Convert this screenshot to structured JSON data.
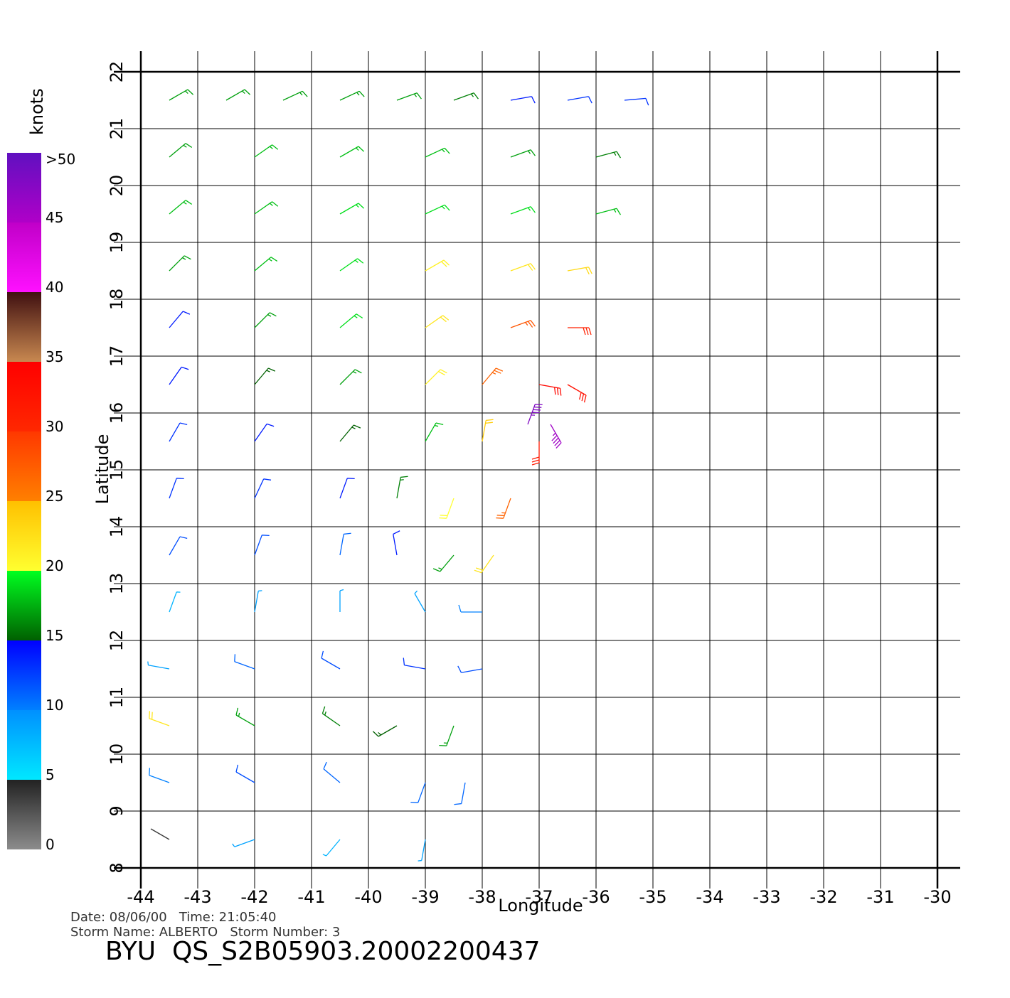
{
  "chart_data": {
    "type": "wind-barbs",
    "x_label": "Longitude",
    "y_label": "Latitude",
    "xlim": [
      -44,
      -30
    ],
    "ylim": [
      8,
      22
    ],
    "xticks": [
      -44,
      -43,
      -42,
      -41,
      -40,
      -39,
      -38,
      -37,
      -36,
      -35,
      -34,
      -33,
      -32,
      -31,
      -30
    ],
    "yticks": [
      8,
      9,
      10,
      11,
      12,
      13,
      14,
      15,
      16,
      17,
      18,
      19,
      20,
      21,
      22
    ],
    "grid": true,
    "colorbar": {
      "label": "knots",
      "ticks": [
        0,
        5,
        10,
        15,
        20,
        25,
        30,
        35,
        40,
        45,
        {
          "value": 50,
          "label": ">50"
        }
      ],
      "colors": [
        [
          "#8c8c8c",
          "#222222"
        ],
        [
          "#00e8ff",
          "#0090ff"
        ],
        [
          "#0080ff",
          "#0000ff"
        ],
        [
          "#006000",
          "#00ff20"
        ],
        [
          "#ffff30",
          "#ffc000"
        ],
        [
          "#ff8000",
          "#ff3800"
        ],
        [
          "#ff2800",
          "#ff0000"
        ],
        [
          "#c88850",
          "#401010"
        ],
        [
          "#ff10ff",
          "#c000c8"
        ],
        [
          "#b000c8",
          "#6010c0"
        ]
      ]
    },
    "barbs": {
      "lon": [
        -43.5,
        -42.5,
        -41.5,
        -40.5,
        -39.5,
        -38.5,
        -37.5,
        -36.5,
        -35.5,
        -43.5,
        -42,
        -40.5,
        -39,
        -37.5,
        -36,
        -43.5,
        -42,
        -40.5,
        -39,
        -37.5,
        -36,
        -43.5,
        -42,
        -40.5,
        -39,
        -37.5,
        -36.5,
        -43.5,
        -42,
        -40.5,
        -39,
        -37.5,
        -36.5,
        -43.5,
        -42,
        -40.5,
        -39,
        -38,
        -37,
        -36.5,
        -37.2,
        -36.8,
        -43.5,
        -42,
        -40.5,
        -39,
        -38,
        -37,
        -43.5,
        -42,
        -40.5,
        -39.5,
        -38.5,
        -37.5,
        -43.5,
        -42,
        -40.5,
        -39.5,
        -38.5,
        -37.8,
        -43.5,
        -42,
        -40.5,
        -39,
        -38,
        -43.5,
        -42,
        -40.5,
        -39,
        -38,
        -43.5,
        -42,
        -40.5,
        -39.5,
        -38.5,
        -43.5,
        -42,
        -40.5,
        -39,
        -38.3,
        -43.5,
        -42,
        -40.5,
        -39
      ],
      "lat": [
        21.5,
        21.5,
        21.5,
        21.5,
        21.5,
        21.5,
        21.5,
        21.5,
        21.5,
        20.5,
        20.5,
        20.5,
        20.5,
        20.5,
        20.5,
        19.5,
        19.5,
        19.5,
        19.5,
        19.5,
        19.5,
        18.5,
        18.5,
        18.5,
        18.5,
        18.5,
        18.5,
        17.5,
        17.5,
        17.5,
        17.5,
        17.5,
        17.5,
        16.5,
        16.5,
        16.5,
        16.5,
        16.5,
        16.5,
        16.5,
        15.8,
        15.8,
        15.5,
        15.5,
        15.5,
        15.5,
        15.5,
        15.5,
        14.5,
        14.5,
        14.5,
        14.5,
        14.5,
        14.5,
        13.5,
        13.5,
        13.5,
        13.5,
        13.5,
        13.5,
        12.5,
        12.5,
        12.5,
        12.5,
        12.5,
        11.5,
        11.5,
        11.5,
        11.5,
        11.5,
        10.5,
        10.5,
        10.5,
        10.5,
        10.5,
        9.5,
        9.5,
        9.5,
        9.5,
        9.5,
        8.5,
        8.5,
        8.5,
        8.5
      ],
      "speed": [
        17,
        17,
        17,
        17,
        17,
        16,
        14,
        13,
        13,
        17,
        18,
        18,
        18,
        17,
        16,
        18,
        18,
        19,
        19,
        19,
        18,
        17,
        18,
        19,
        21,
        22,
        23,
        14,
        17,
        19,
        22,
        28,
        31,
        14,
        15,
        17,
        21,
        27,
        34,
        33,
        48,
        46,
        13,
        14,
        15,
        18,
        24,
        32,
        13,
        13,
        14,
        16,
        20,
        27,
        12,
        12,
        11,
        14,
        17,
        22,
        8,
        9,
        9,
        9,
        10,
        9,
        11,
        12,
        13,
        12,
        22,
        17,
        16,
        15,
        17,
        10,
        12,
        11,
        11,
        11,
        4,
        9,
        8,
        9
      ],
      "direction": [
        60,
        60,
        65,
        65,
        70,
        70,
        80,
        80,
        85,
        50,
        55,
        60,
        65,
        70,
        75,
        50,
        55,
        60,
        65,
        70,
        75,
        45,
        50,
        55,
        60,
        70,
        80,
        40,
        45,
        50,
        55,
        70,
        90,
        35,
        40,
        45,
        45,
        40,
        100,
        120,
        20,
        150,
        30,
        35,
        40,
        30,
        10,
        180,
        20,
        25,
        20,
        10,
        200,
        200,
        30,
        20,
        10,
        350,
        220,
        215,
        20,
        10,
        360,
        330,
        270,
        280,
        290,
        300,
        280,
        260,
        290,
        300,
        305,
        240,
        200,
        290,
        300,
        310,
        200,
        190,
        300,
        250,
        220,
        190
      ]
    },
    "info_lines": [
      "Date: 08/06/00   Time: 21:05:40",
      "Storm Name: ALBERTO   Storm Number: 3"
    ],
    "footer": "BYU  QS_S2B05903.20002200437"
  }
}
